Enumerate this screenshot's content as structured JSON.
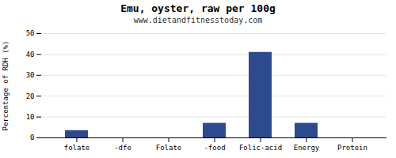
{
  "chart_data": {
    "type": "bar",
    "title": "Emu, oyster, raw per 100g",
    "subtitle": "www.dietandfitnesstoday.com",
    "categories": [
      "folate",
      "-dfe",
      "Folate",
      "-food",
      "Folic-acid",
      "Energy",
      "Protein"
    ],
    "values": [
      3.5,
      0,
      0,
      7.0,
      41.0,
      7.0,
      0
    ],
    "color": "#2e4a8e",
    "ylabel": "Percentage of RDH (%)",
    "ylim": [
      0,
      50
    ],
    "yticks": [
      0,
      10,
      20,
      30,
      40,
      50
    ],
    "grid": true
  }
}
